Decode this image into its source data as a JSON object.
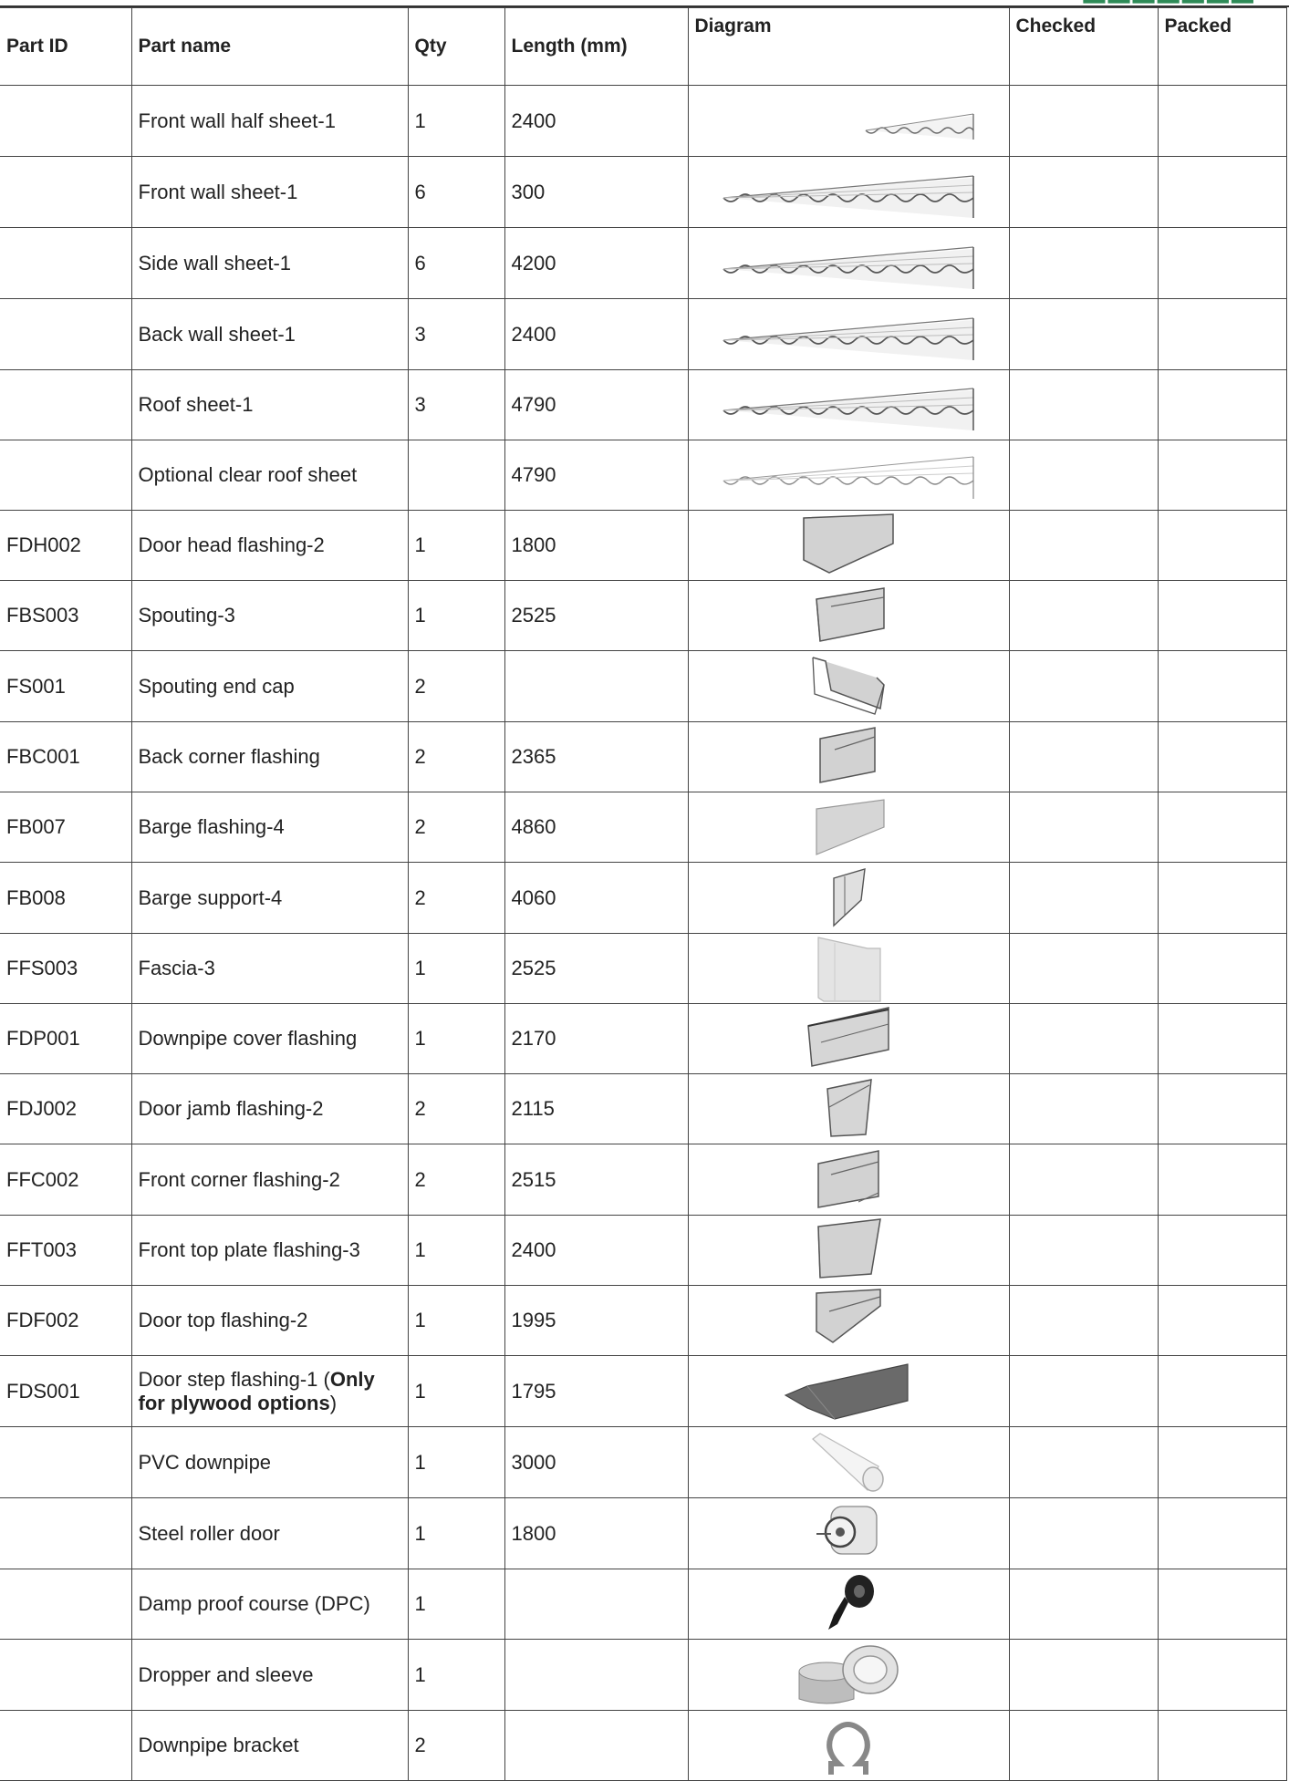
{
  "table": {
    "headers": [
      "Part ID",
      "Part name",
      "Qty",
      "Length (mm)",
      "Diagram",
      "Checked",
      "Packed"
    ],
    "rows": [
      {
        "id": "",
        "name": "Front wall half sheet-1",
        "qty": "1",
        "length": "2400",
        "icon": "half-corrugated-sheet-icon"
      },
      {
        "id": "",
        "name": "Front wall sheet-1",
        "qty": "6",
        "length": "300",
        "icon": "corrugated-sheet-icon"
      },
      {
        "id": "",
        "name": "Side wall sheet-1",
        "qty": "6",
        "length": "4200",
        "icon": "corrugated-sheet-icon"
      },
      {
        "id": "",
        "name": "Back wall sheet-1",
        "qty": "3",
        "length": "2400",
        "icon": "corrugated-sheet-icon"
      },
      {
        "id": "",
        "name": "Roof sheet-1",
        "qty": "3",
        "length": "4790",
        "icon": "corrugated-sheet-icon"
      },
      {
        "id": "",
        "name": "Optional clear roof sheet",
        "qty": "",
        "length": "4790",
        "icon": "clear-corrugated-sheet-icon"
      },
      {
        "id": "FDH002",
        "name": "Door head flashing-2",
        "qty": "1",
        "length": "1800",
        "icon": "door-head-flashing-icon"
      },
      {
        "id": "FBS003",
        "name": "Spouting-3",
        "qty": "1",
        "length": "2525",
        "icon": "spouting-icon"
      },
      {
        "id": "FS001",
        "name": "Spouting end cap",
        "qty": "2",
        "length": "",
        "icon": "spouting-end-cap-icon"
      },
      {
        "id": "FBC001",
        "name": "Back corner flashing",
        "qty": "2",
        "length": "2365",
        "icon": "corner-flashing-icon"
      },
      {
        "id": "FB007",
        "name": "Barge flashing-4",
        "qty": "2",
        "length": "4860",
        "icon": "barge-flashing-icon"
      },
      {
        "id": "FB008",
        "name": "Barge support-4",
        "qty": "2",
        "length": "4060",
        "icon": "barge-support-icon"
      },
      {
        "id": "FFS003",
        "name": "Fascia-3",
        "qty": "1",
        "length": "2525",
        "icon": "fascia-icon"
      },
      {
        "id": "FDP001",
        "name": "Downpipe cover flashing",
        "qty": "1",
        "length": "2170",
        "icon": "downpipe-cover-flashing-icon"
      },
      {
        "id": "FDJ002",
        "name": "Door jamb flashing-2",
        "qty": "2",
        "length": "2115",
        "icon": "door-jamb-flashing-icon"
      },
      {
        "id": "FFC002",
        "name": "Front corner flashing-2",
        "qty": "2",
        "length": "2515",
        "icon": "front-corner-flashing-icon"
      },
      {
        "id": "FFT003",
        "name": "Front top plate flashing-3",
        "qty": "1",
        "length": "2400",
        "icon": "top-plate-flashing-icon"
      },
      {
        "id": "FDF002",
        "name": "Door top flashing-2",
        "qty": "1",
        "length": "1995",
        "icon": "door-top-flashing-icon"
      },
      {
        "id": "FDS001",
        "name": "Door step flashing-1 (",
        "name_bold": "Only for plywood options",
        "name_suffix": ")",
        "qty": "1",
        "length": "1795",
        "icon": "door-step-flashing-icon"
      },
      {
        "id": "",
        "name": "PVC downpipe",
        "qty": "1",
        "length": "3000",
        "icon": "pvc-pipe-icon"
      },
      {
        "id": "",
        "name": "Steel roller door",
        "qty": "1",
        "length": "1800",
        "icon": "roller-door-icon"
      },
      {
        "id": "",
        "name": "Damp proof course (DPC)",
        "qty": "1",
        "length": "",
        "icon": "dpc-roll-icon"
      },
      {
        "id": "",
        "name": "Dropper and sleeve",
        "qty": "1",
        "length": "",
        "icon": "dropper-sleeve-icon"
      },
      {
        "id": "",
        "name": "Downpipe bracket",
        "qty": "2",
        "length": "",
        "icon": "downpipe-bracket-icon"
      }
    ]
  },
  "colors": {
    "border": "#444444",
    "logo": "#2e8b57",
    "text": "#222222"
  }
}
